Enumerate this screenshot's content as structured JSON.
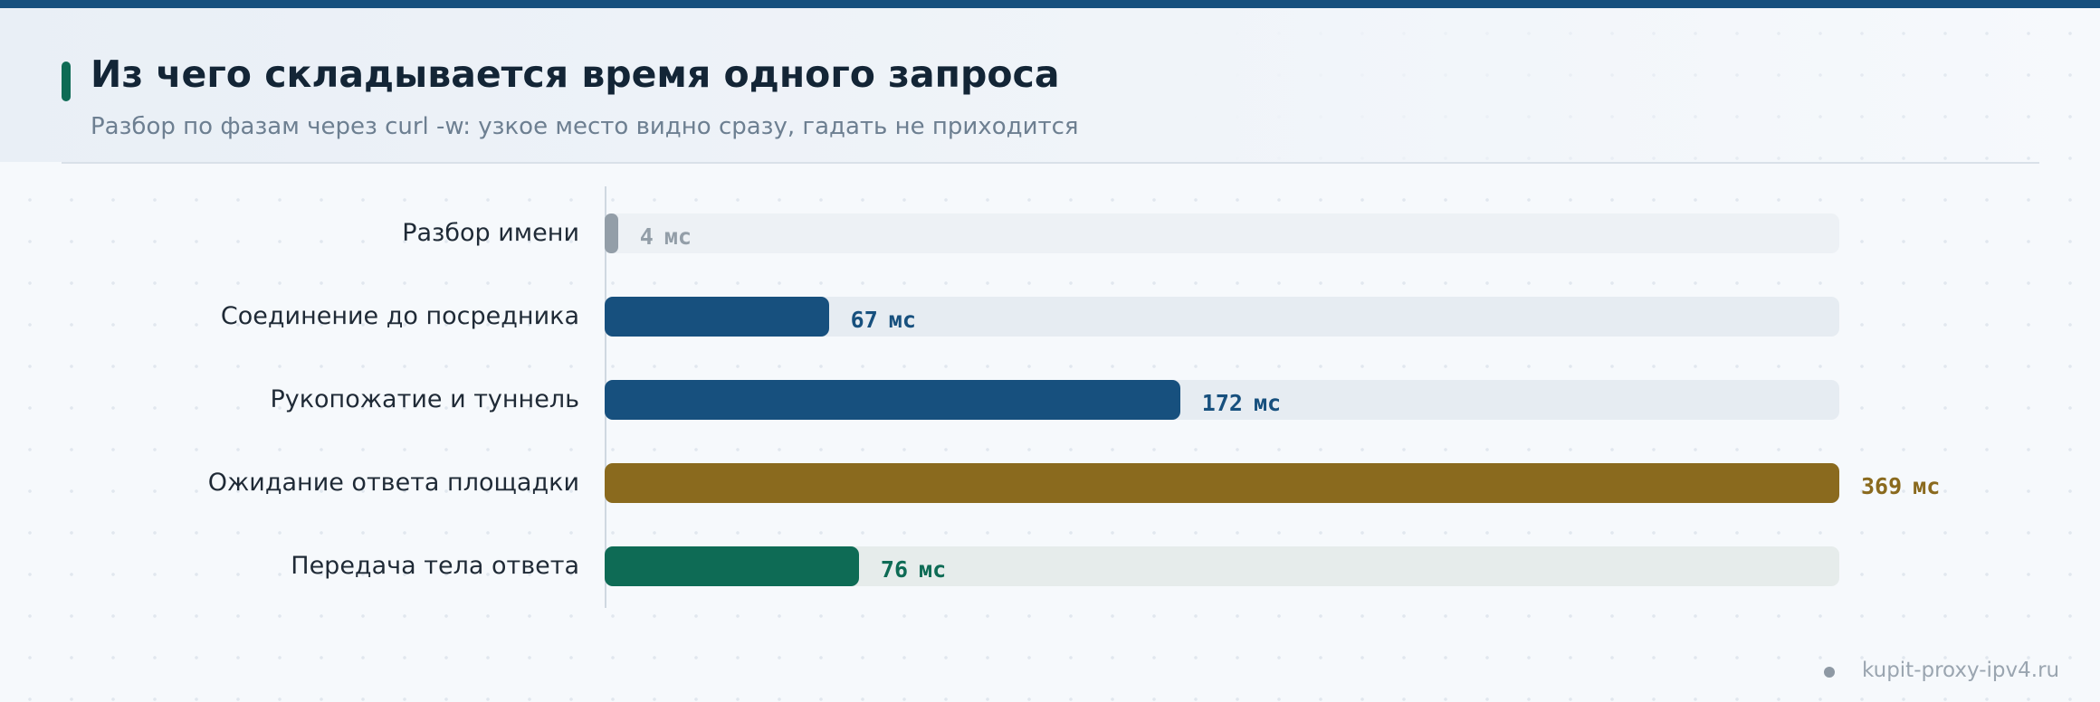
{
  "chart_data": {
    "type": "bar",
    "orientation": "horizontal",
    "title": "Из чего складывается время одного запроса",
    "subtitle": "Разбор по фазам через curl -w: узкое место видно сразу, гадать не приходится",
    "unit": "мс",
    "xlim": [
      0,
      369
    ],
    "categories": [
      "Разбор имени",
      "Соединение до посредника",
      "Рукопожатие и туннель",
      "Ожидание ответа площадки",
      "Передача тела ответа"
    ],
    "values": [
      4,
      67,
      172,
      369,
      76
    ],
    "value_labels": [
      "4",
      "67",
      "172",
      "369",
      "76"
    ],
    "bar_colors": [
      "#939ea8",
      "#17507e",
      "#17507e",
      "#8a6a1e",
      "#0e6b55"
    ],
    "track_colors": [
      "#edf1f5",
      "#e6ecf2",
      "#e6ecf2",
      "#e8ecef",
      "#e6eceb"
    ],
    "value_colors": [
      "#939ea8",
      "#17507e",
      "#17507e",
      "#8a6a1e",
      "#0e6b55"
    ],
    "grid": false,
    "legend": "none"
  },
  "footer": {
    "source": "kupit-proxy-ipv4.ru"
  }
}
